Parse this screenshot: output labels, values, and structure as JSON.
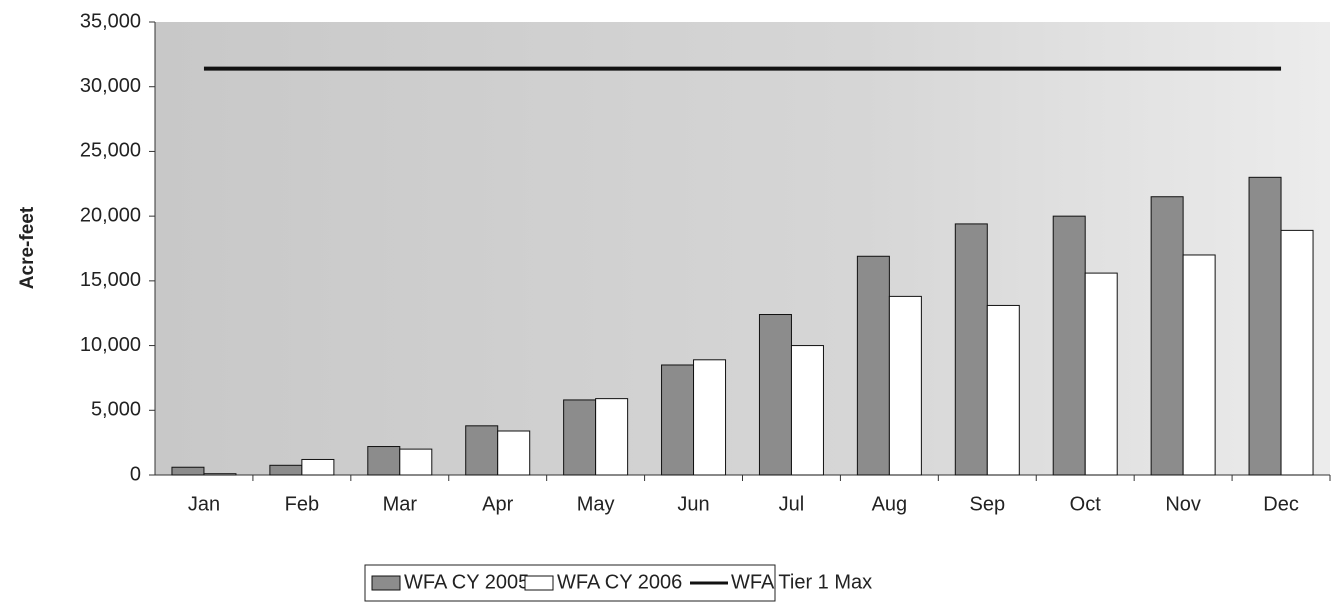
{
  "chart_data": {
    "type": "bar",
    "y_label": "Acre-feet",
    "categories": [
      "Jan",
      "Feb",
      "Mar",
      "Apr",
      "May",
      "Jun",
      "Jul",
      "Aug",
      "Sep",
      "Oct",
      "Nov",
      "Dec"
    ],
    "series": [
      {
        "name": "WFA CY 2005",
        "type": "bar",
        "color": "#8c8c8c",
        "values": [
          600,
          750,
          2200,
          3800,
          5800,
          8500,
          12400,
          16900,
          19400,
          20000,
          21500,
          23000
        ]
      },
      {
        "name": "WFA CY 2006",
        "type": "bar",
        "color": "#ffffff",
        "values": [
          100,
          1200,
          2000,
          3400,
          5900,
          8900,
          10000,
          13800,
          13100,
          15600,
          17000,
          18900
        ]
      },
      {
        "name": "WFA Tier 1 Max",
        "type": "line",
        "color": "#111111",
        "values": [
          31400,
          31400,
          31400,
          31400,
          31400,
          31400,
          31400,
          31400,
          31400,
          31400,
          31400,
          31400
        ]
      }
    ],
    "ylim": [
      0,
      35000
    ],
    "yticks": [
      0,
      {
        "value": 5000,
        "label": "5,000"
      },
      {
        "value": 10000,
        "label": "10,000"
      },
      {
        "value": 15000,
        "label": "15,000"
      },
      {
        "value": 20000,
        "label": "20,000"
      },
      {
        "value": 25000,
        "label": "25,000"
      },
      {
        "value": 30000,
        "label": "30,000"
      },
      {
        "value": 35000,
        "label": "35,000"
      }
    ],
    "legend": "bottom"
  }
}
